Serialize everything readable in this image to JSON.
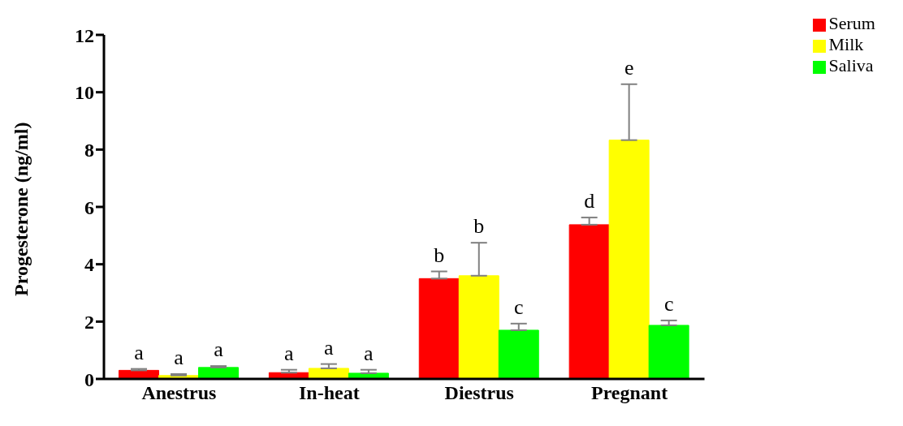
{
  "chart_data": {
    "type": "bar",
    "ylabel": "Progesterone (ng/ml)",
    "categories": [
      "Anestrus",
      "In-heat",
      "Diestrus",
      "Pregnant"
    ],
    "series": [
      {
        "name": "Serum",
        "color": "#ff0000",
        "values": [
          0.3,
          0.22,
          3.5,
          5.38
        ],
        "errors": [
          0.05,
          0.1,
          0.25,
          0.25
        ],
        "value_labels": [
          "a",
          "a",
          "b",
          "d"
        ]
      },
      {
        "name": "Milk",
        "color": "#ffff00",
        "values": [
          0.12,
          0.37,
          3.6,
          8.33
        ],
        "errors": [
          0.05,
          0.15,
          1.15,
          1.95
        ],
        "value_labels": [
          "a",
          "a",
          "b",
          "e"
        ]
      },
      {
        "name": "Saliva",
        "color": "#00ff00",
        "values": [
          0.4,
          0.2,
          1.7,
          1.87
        ],
        "errors": [
          0.05,
          0.12,
          0.23,
          0.17
        ],
        "value_labels": [
          "a",
          "a",
          "c",
          "c"
        ]
      }
    ],
    "ylim": [
      0,
      12
    ],
    "yticks": [
      0,
      2,
      4,
      6,
      8,
      10,
      12
    ],
    "grid": false,
    "legend": "top right"
  }
}
